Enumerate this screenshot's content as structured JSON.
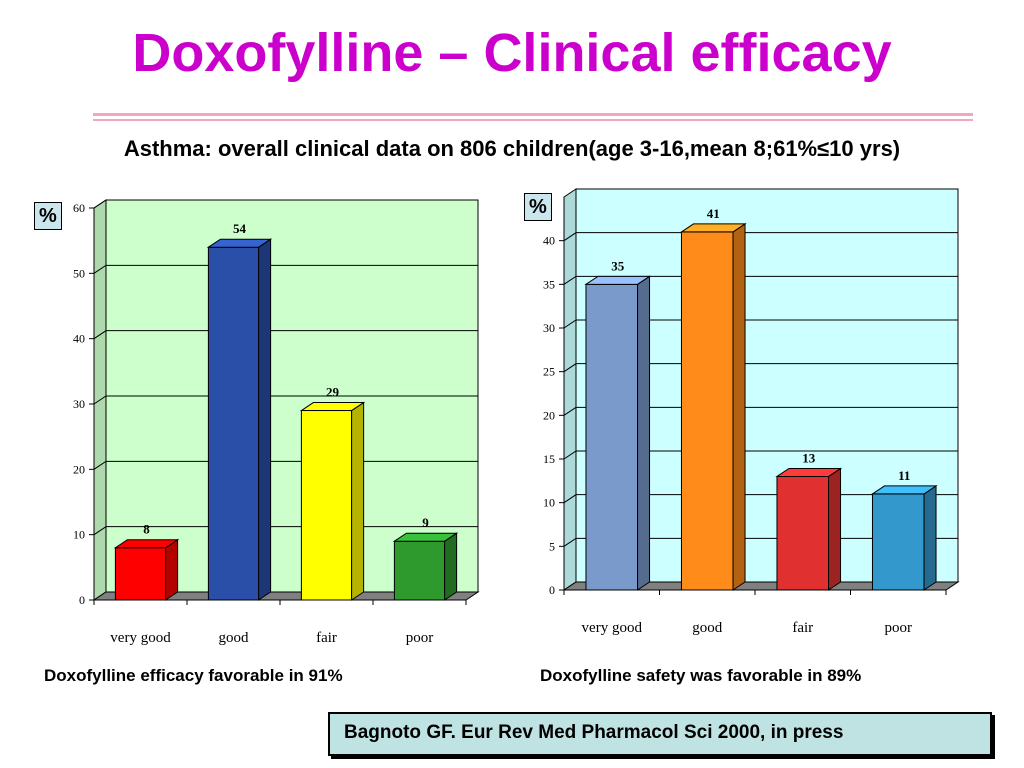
{
  "slide": {
    "title": "Doxofylline – Clinical efficacy",
    "subtitle": "Asthma: overall clinical data on 806 children(age 3-16,mean 8;61%≤10 yrs)",
    "caption_left": "Doxofylline efficacy favorable in 91%",
    "caption_right": "Doxofylline safety was favorable in 89%",
    "reference": "Bagnoto GF. Eur Rev Med Pharmacol Sci 2000, in press",
    "percent_label": "%"
  },
  "chart_data": [
    {
      "type": "bar",
      "categories": [
        "very good",
        "good",
        "fair",
        "poor"
      ],
      "values": [
        8,
        54,
        29,
        9
      ],
      "ylim": [
        0,
        60
      ],
      "yticks": [
        0,
        10,
        20,
        30,
        40,
        50,
        60
      ],
      "ylabel": "%",
      "grid": true,
      "background": "#ccffcc",
      "bar_colors": [
        "#ff0000",
        "#2a4fa8",
        "#ffff00",
        "#2e9a2e"
      ]
    },
    {
      "type": "bar",
      "categories": [
        "very good",
        "good",
        "fair",
        "poor"
      ],
      "values": [
        35,
        41,
        13,
        11
      ],
      "ylim": [
        0,
        45
      ],
      "yticks": [
        0,
        5,
        10,
        15,
        20,
        25,
        30,
        35,
        40
      ],
      "ylabel": "%",
      "grid": true,
      "background": "#ccffff",
      "bar_colors": [
        "#7a9acc",
        "#ff8c1a",
        "#e03030",
        "#3399cc"
      ]
    }
  ]
}
